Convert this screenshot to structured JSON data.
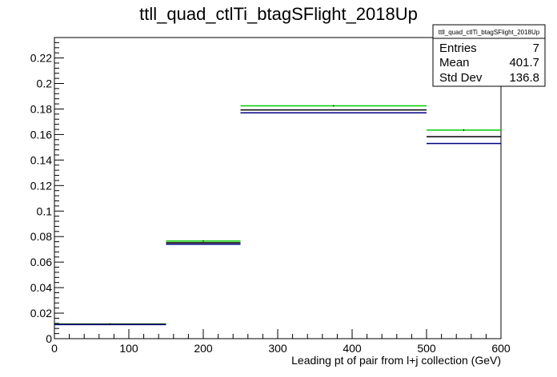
{
  "chart_data": {
    "type": "step",
    "title": "ttll_quad_ctlTi_btagSFlight_2018Up",
    "xlabel": "Leading pt of pair from l+j collection (GeV)",
    "ylabel": "",
    "xlim": [
      0,
      600
    ],
    "ylim": [
      0,
      0.236
    ],
    "x_ticks": [
      0,
      100,
      200,
      300,
      400,
      500,
      600
    ],
    "y_ticks": [
      0,
      0.02,
      0.04,
      0.06,
      0.08,
      0.1,
      0.12,
      0.14,
      0.16,
      0.18,
      0.2,
      0.22
    ],
    "bins": [
      {
        "low": 0,
        "high": 150
      },
      {
        "low": 150,
        "high": 250
      },
      {
        "low": 250,
        "high": 500
      },
      {
        "low": 500,
        "high": 600
      }
    ],
    "series": [
      {
        "color": "#00cc00",
        "values": [
          0.0115,
          0.0765,
          0.1825,
          0.1635
        ]
      },
      {
        "color": "#000000",
        "values": [
          0.0113,
          0.0752,
          0.1793,
          0.1583
        ]
      },
      {
        "color": "#000080",
        "values": [
          0.011,
          0.074,
          0.177,
          0.153
        ]
      }
    ],
    "stats": {
      "name": "ttll_quad_ctlTi_btagSFlight_2018Up",
      "rows": [
        {
          "label": "Entries",
          "value": "7"
        },
        {
          "label": "Mean",
          "value": "401.7"
        },
        {
          "label": "Std Dev",
          "value": "136.8"
        }
      ]
    },
    "grid": false,
    "legend": "top-right"
  }
}
